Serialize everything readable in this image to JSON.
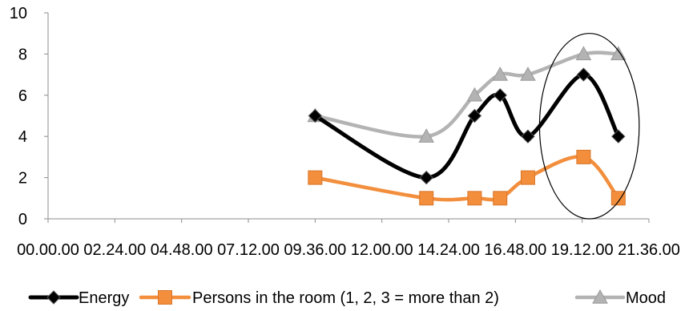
{
  "chart_data": {
    "type": "line",
    "x_axis": {
      "ticks": [
        "00.00.00",
        "02.24.00",
        "04.48.00",
        "07.12.00",
        "09.36.00",
        "12.00.00",
        "14.24.00",
        "16.48.00",
        "19.12.00",
        "21.36.00"
      ],
      "range": [
        "00.00.00",
        "21.36.00"
      ]
    },
    "y_axis": {
      "ticks": [
        "0",
        "2",
        "4",
        "6",
        "8",
        "10"
      ],
      "range": [
        0,
        10
      ]
    },
    "grid": false,
    "legend_position": "bottom",
    "series": [
      {
        "name": "Energy",
        "color": "#000000",
        "marker": "diamond",
        "x": [
          "09.36.00",
          "13.36.00",
          "15.20.00",
          "16.15.00",
          "17.15.00",
          "19.15.00",
          "20.30.00"
        ],
        "y": [
          5,
          2,
          5,
          6,
          4,
          7,
          4
        ]
      },
      {
        "name": "Persons in the room (1, 2, 3 = more than 2)",
        "color": "#f28e3c",
        "marker": "square",
        "x": [
          "09.36.00",
          "13.36.00",
          "15.20.00",
          "16.15.00",
          "17.15.00",
          "19.15.00",
          "20.30.00"
        ],
        "y": [
          2,
          1,
          1,
          1,
          2,
          3,
          1
        ]
      },
      {
        "name": "Mood",
        "color": "#b3b3b3",
        "marker": "triangle",
        "x": [
          "09.36.00",
          "13.36.00",
          "15.20.00",
          "16.15.00",
          "17.15.00",
          "19.15.00",
          "20.30.00"
        ],
        "y": [
          5,
          4,
          6,
          7,
          7,
          8,
          8
        ]
      }
    ],
    "annotations": [
      {
        "shape": "ellipse",
        "x_range": [
          "17.40.00",
          "21.15.00"
        ],
        "y_range": [
          0,
          9
        ]
      }
    ]
  }
}
